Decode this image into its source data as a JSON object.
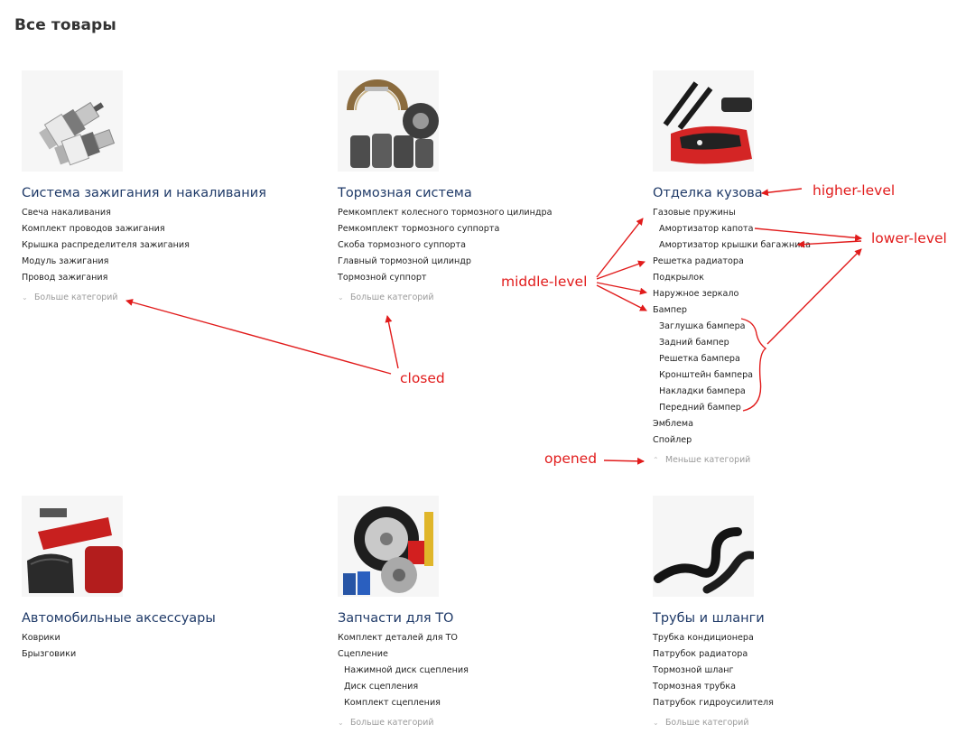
{
  "page": {
    "title": "Все товары"
  },
  "categories": [
    {
      "title": "Система зажигания и накаливания",
      "image_icon": "spark-plugs-icon",
      "items": [
        {
          "label": "Свеча накаливания",
          "level": 1
        },
        {
          "label": "Комплект проводов зажигания",
          "level": 1
        },
        {
          "label": "Крышка распределителя зажигания",
          "level": 1
        },
        {
          "label": "Модуль зажигания",
          "level": 1
        },
        {
          "label": "Провод зажигания",
          "level": 1
        }
      ],
      "toggle": {
        "label": "Больше категорий",
        "state": "closed"
      }
    },
    {
      "title": "Тормозная система",
      "image_icon": "brake-parts-icon",
      "items": [
        {
          "label": "Ремкомплект колесного тормозного цилиндра",
          "level": 1
        },
        {
          "label": "Ремкомплект тормозного суппорта",
          "level": 1
        },
        {
          "label": "Скоба тормозного суппорта",
          "level": 1
        },
        {
          "label": "Главный тормозной цилиндр",
          "level": 1
        },
        {
          "label": "Тормозной суппорт",
          "level": 1
        }
      ],
      "toggle": {
        "label": "Больше категорий",
        "state": "closed"
      }
    },
    {
      "title": "Отделка кузова",
      "image_icon": "body-parts-icon",
      "items": [
        {
          "label": "Газовые пружины",
          "level": 1
        },
        {
          "label": "Амортизатор капота",
          "level": 2
        },
        {
          "label": "Амортизатор крышки багажника",
          "level": 2
        },
        {
          "label": "Решетка радиатора",
          "level": 1
        },
        {
          "label": "Подкрылок",
          "level": 1
        },
        {
          "label": "Наружное зеркало",
          "level": 1
        },
        {
          "label": "Бампер",
          "level": 1
        },
        {
          "label": "Заглушка бампера",
          "level": 2
        },
        {
          "label": "Задний бампер",
          "level": 2
        },
        {
          "label": "Решетка бампера",
          "level": 2
        },
        {
          "label": "Кронштейн бампера",
          "level": 2
        },
        {
          "label": "Накладки бампера",
          "level": 2
        },
        {
          "label": "Передний бампер",
          "level": 2
        },
        {
          "label": "Эмблема",
          "level": 1
        },
        {
          "label": "Спойлер",
          "level": 1
        }
      ],
      "toggle": {
        "label": "Меньше категорий",
        "state": "opened"
      }
    },
    {
      "title": "Автомобильные аксессуары",
      "image_icon": "car-jack-icon",
      "items": [
        {
          "label": "Коврики",
          "level": 1
        },
        {
          "label": "Брызговики",
          "level": 1
        }
      ],
      "toggle": null
    },
    {
      "title": "Запчасти для ТО",
      "image_icon": "service-parts-icon",
      "items": [
        {
          "label": "Комплект деталей для ТО",
          "level": 1
        },
        {
          "label": "Сцепление",
          "level": 1
        },
        {
          "label": "Нажимной диск сцепления",
          "level": 2
        },
        {
          "label": "Диск сцепления",
          "level": 2
        },
        {
          "label": "Комплект сцепления",
          "level": 2
        }
      ],
      "toggle": {
        "label": "Больше категорий",
        "state": "closed"
      }
    },
    {
      "title": "Трубы и шланги",
      "image_icon": "hoses-icon",
      "items": [
        {
          "label": "Трубка кондиционера",
          "level": 1
        },
        {
          "label": "Патрубок радиатора",
          "level": 1
        },
        {
          "label": "Тормозной шланг",
          "level": 1
        },
        {
          "label": "Тормозная трубка",
          "level": 1
        },
        {
          "label": "Патрубок гидроусилителя",
          "level": 1
        }
      ],
      "toggle": {
        "label": "Больше категорий",
        "state": "closed"
      }
    }
  ],
  "annotations": {
    "higher_level": "higher-level",
    "lower_level": "lower-level",
    "middle_level": "middle-level",
    "closed": "closed",
    "opened": "opened",
    "color": "#e11b1b"
  }
}
